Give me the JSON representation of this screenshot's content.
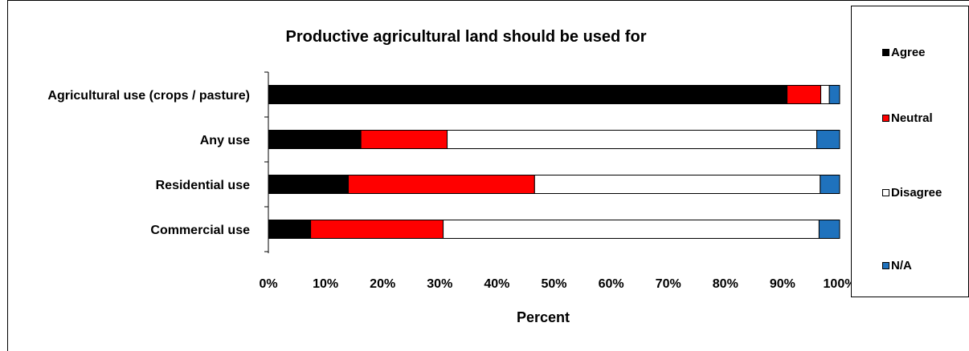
{
  "chart_data": {
    "type": "bar",
    "orientation": "horizontal",
    "stacked": "percent",
    "title": "Productive agricultural land should be used for",
    "xlabel": "Percent",
    "ylabel": "",
    "xlim": [
      0,
      100
    ],
    "x_ticks": [
      "0%",
      "10%",
      "20%",
      "30%",
      "40%",
      "50%",
      "60%",
      "70%",
      "80%",
      "90%",
      "100%"
    ],
    "categories": [
      "Agricultural use (crops / pasture)",
      "Any use",
      "Residential use",
      "Commercial use"
    ],
    "series": [
      {
        "name": "Agree",
        "color": "#000000",
        "values": [
          90.8,
          16.2,
          14.0,
          7.4
        ]
      },
      {
        "name": "Neutral",
        "color": "#ff0000",
        "values": [
          5.9,
          15.1,
          32.6,
          23.2
        ]
      },
      {
        "name": "Disagree",
        "color": "#ffffff",
        "values": [
          1.5,
          64.7,
          50.0,
          65.8
        ]
      },
      {
        "name": "N/A",
        "color": "#1f72bd",
        "values": [
          1.8,
          4.0,
          3.4,
          3.6
        ]
      }
    ],
    "legend_position": "right",
    "grid": false
  }
}
